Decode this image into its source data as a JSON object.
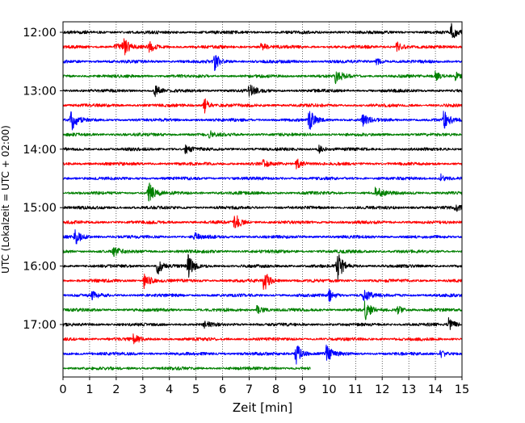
{
  "chart_data": {
    "type": "line",
    "subtype": "helicorder",
    "title": "",
    "xlabel": "Zeit  [min]",
    "ylabel": "UTC (Lokalzeit = UTC + 02:00)",
    "xlim": [
      0,
      15
    ],
    "x_ticks": [
      0,
      1,
      2,
      3,
      4,
      5,
      6,
      7,
      8,
      9,
      10,
      11,
      12,
      13,
      14,
      15
    ],
    "x_tick_labels": [
      "0",
      "1",
      "2",
      "3",
      "4",
      "5",
      "6",
      "7",
      "8",
      "9",
      "10",
      "11",
      "12",
      "13",
      "14",
      "15"
    ],
    "y_tick_labels": [
      "12:00",
      "13:00",
      "14:00",
      "15:00",
      "16:00",
      "17:00"
    ],
    "y_tick_rows": [
      0,
      4,
      8,
      12,
      16,
      20
    ],
    "grid": "vertical dotted at every minute",
    "colors_cycle": [
      "#000000",
      "#ff0000",
      "#0000ff",
      "#008000"
    ],
    "rows": [
      {
        "start": "12:00",
        "color": "#000000",
        "end_min": 15,
        "events": [
          {
            "t": 14.6,
            "amp": 1.1
          }
        ]
      },
      {
        "start": "12:15",
        "color": "#ff0000",
        "end_min": 15,
        "events": [
          {
            "t": 2.25,
            "amp": 1.2
          },
          {
            "t": 1.95,
            "amp": 0.5
          },
          {
            "t": 3.25,
            "amp": 0.6
          },
          {
            "t": 7.45,
            "amp": 0.5
          },
          {
            "t": 12.55,
            "amp": 0.7
          }
        ]
      },
      {
        "start": "12:30",
        "color": "#0000ff",
        "end_min": 15,
        "events": [
          {
            "t": 5.7,
            "amp": 1.0
          },
          {
            "t": 11.8,
            "amp": 0.45
          }
        ]
      },
      {
        "start": "12:45",
        "color": "#008000",
        "end_min": 15,
        "events": [
          {
            "t": 10.25,
            "amp": 1.0
          },
          {
            "t": 14.0,
            "amp": 0.7
          },
          {
            "t": 14.75,
            "amp": 0.6
          }
        ]
      },
      {
        "start": "13:00",
        "color": "#000000",
        "end_min": 15,
        "events": [
          {
            "t": 3.45,
            "amp": 0.7
          },
          {
            "t": 7.0,
            "amp": 0.9
          }
        ]
      },
      {
        "start": "13:15",
        "color": "#ff0000",
        "end_min": 15,
        "events": [
          {
            "t": 5.3,
            "amp": 1.0
          }
        ]
      },
      {
        "start": "13:30",
        "color": "#0000ff",
        "end_min": 15,
        "events": [
          {
            "t": 0.3,
            "amp": 1.4
          },
          {
            "t": 9.25,
            "amp": 1.4
          },
          {
            "t": 11.25,
            "amp": 0.8
          },
          {
            "t": 14.3,
            "amp": 1.4
          }
        ]
      },
      {
        "start": "13:45",
        "color": "#008000",
        "end_min": 15,
        "events": [
          {
            "t": 5.5,
            "amp": 0.4
          }
        ]
      },
      {
        "start": "14:00",
        "color": "#000000",
        "end_min": 15,
        "events": [
          {
            "t": 4.6,
            "amp": 0.5
          },
          {
            "t": 9.6,
            "amp": 0.5
          }
        ]
      },
      {
        "start": "14:15",
        "color": "#ff0000",
        "end_min": 15,
        "events": [
          {
            "t": 8.75,
            "amp": 0.9
          },
          {
            "t": 7.5,
            "amp": 0.45
          }
        ]
      },
      {
        "start": "14:30",
        "color": "#0000ff",
        "end_min": 15,
        "events": [
          {
            "t": 14.2,
            "amp": 0.5
          }
        ]
      },
      {
        "start": "14:45",
        "color": "#008000",
        "end_min": 15,
        "events": [
          {
            "t": 3.2,
            "amp": 1.6
          },
          {
            "t": 11.75,
            "amp": 0.9
          }
        ]
      },
      {
        "start": "15:00",
        "color": "#000000",
        "end_min": 15,
        "events": [
          {
            "t": 14.75,
            "amp": 0.4
          }
        ]
      },
      {
        "start": "15:15",
        "color": "#ff0000",
        "end_min": 15,
        "events": [
          {
            "t": 6.45,
            "amp": 1.2
          }
        ]
      },
      {
        "start": "15:30",
        "color": "#0000ff",
        "end_min": 15,
        "events": [
          {
            "t": 0.45,
            "amp": 1.0
          },
          {
            "t": 4.95,
            "amp": 0.45
          }
        ]
      },
      {
        "start": "15:45",
        "color": "#008000",
        "end_min": 15,
        "events": [
          {
            "t": 1.9,
            "amp": 0.6
          }
        ]
      },
      {
        "start": "16:00",
        "color": "#000000",
        "end_min": 15,
        "events": [
          {
            "t": 3.55,
            "amp": 1.1
          },
          {
            "t": 4.7,
            "amp": 1.4
          },
          {
            "t": 10.3,
            "amp": 2.0
          }
        ]
      },
      {
        "start": "16:15",
        "color": "#ff0000",
        "end_min": 15,
        "events": [
          {
            "t": 3.05,
            "amp": 1.2
          },
          {
            "t": 7.55,
            "amp": 1.4
          }
        ]
      },
      {
        "start": "16:30",
        "color": "#0000ff",
        "end_min": 15,
        "events": [
          {
            "t": 10.0,
            "amp": 0.8
          },
          {
            "t": 11.3,
            "amp": 0.9
          },
          {
            "t": 1.1,
            "amp": 0.5
          }
        ]
      },
      {
        "start": "16:45",
        "color": "#008000",
        "end_min": 15,
        "events": [
          {
            "t": 7.3,
            "amp": 0.7
          },
          {
            "t": 11.35,
            "amp": 1.2
          },
          {
            "t": 12.55,
            "amp": 0.6
          }
        ]
      },
      {
        "start": "17:00",
        "color": "#000000",
        "end_min": 15,
        "events": [
          {
            "t": 14.5,
            "amp": 0.8
          },
          {
            "t": 5.3,
            "amp": 0.4
          }
        ]
      },
      {
        "start": "17:15",
        "color": "#ff0000",
        "end_min": 15,
        "events": [
          {
            "t": 2.65,
            "amp": 0.6
          }
        ]
      },
      {
        "start": "17:30",
        "color": "#0000ff",
        "end_min": 15,
        "events": [
          {
            "t": 8.75,
            "amp": 1.5
          },
          {
            "t": 9.9,
            "amp": 1.1
          },
          {
            "t": 14.2,
            "amp": 0.5
          }
        ]
      },
      {
        "start": "17:45",
        "color": "#008000",
        "end_min": 9.3,
        "events": []
      }
    ]
  }
}
